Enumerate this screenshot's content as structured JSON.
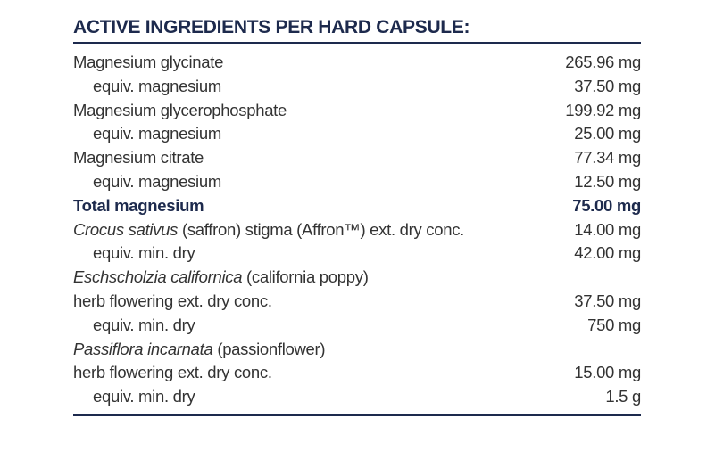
{
  "title": "ACTIVE INGREDIENTS PER HARD CAPSULE:",
  "rows": [
    {
      "name": "Magnesium glycinate",
      "amount": "265.96 mg"
    },
    {
      "name": "equiv. magnesium",
      "amount": "37.50 mg"
    },
    {
      "name": "Magnesium glycerophosphate",
      "amount": "199.92 mg"
    },
    {
      "name": "equiv. magnesium",
      "amount": "25.00 mg"
    },
    {
      "name": "Magnesium citrate",
      "amount": "77.34 mg"
    },
    {
      "name": "equiv. magnesium",
      "amount": "12.50 mg"
    },
    {
      "name": "Total magnesium",
      "amount": "75.00 mg"
    },
    {
      "species": "Crocus sativus",
      "name": "(saffron) stigma (Affron™) ext. dry conc.",
      "amount": "14.00 mg"
    },
    {
      "name": "equiv. min. dry",
      "amount": "42.00 mg"
    },
    {
      "species": "Eschscholzia californica",
      "name": "(california poppy)"
    },
    {
      "name": "herb flowering ext. dry conc.",
      "amount": "37.50 mg"
    },
    {
      "name": "equiv. min. dry",
      "amount": "750 mg"
    },
    {
      "species": "Passiflora incarnata",
      "name": "(passionflower)"
    },
    {
      "name": "herb flowering ext. dry conc.",
      "amount": "15.00 mg"
    },
    {
      "name": "equiv. min. dry",
      "amount": "1.5 g"
    }
  ]
}
